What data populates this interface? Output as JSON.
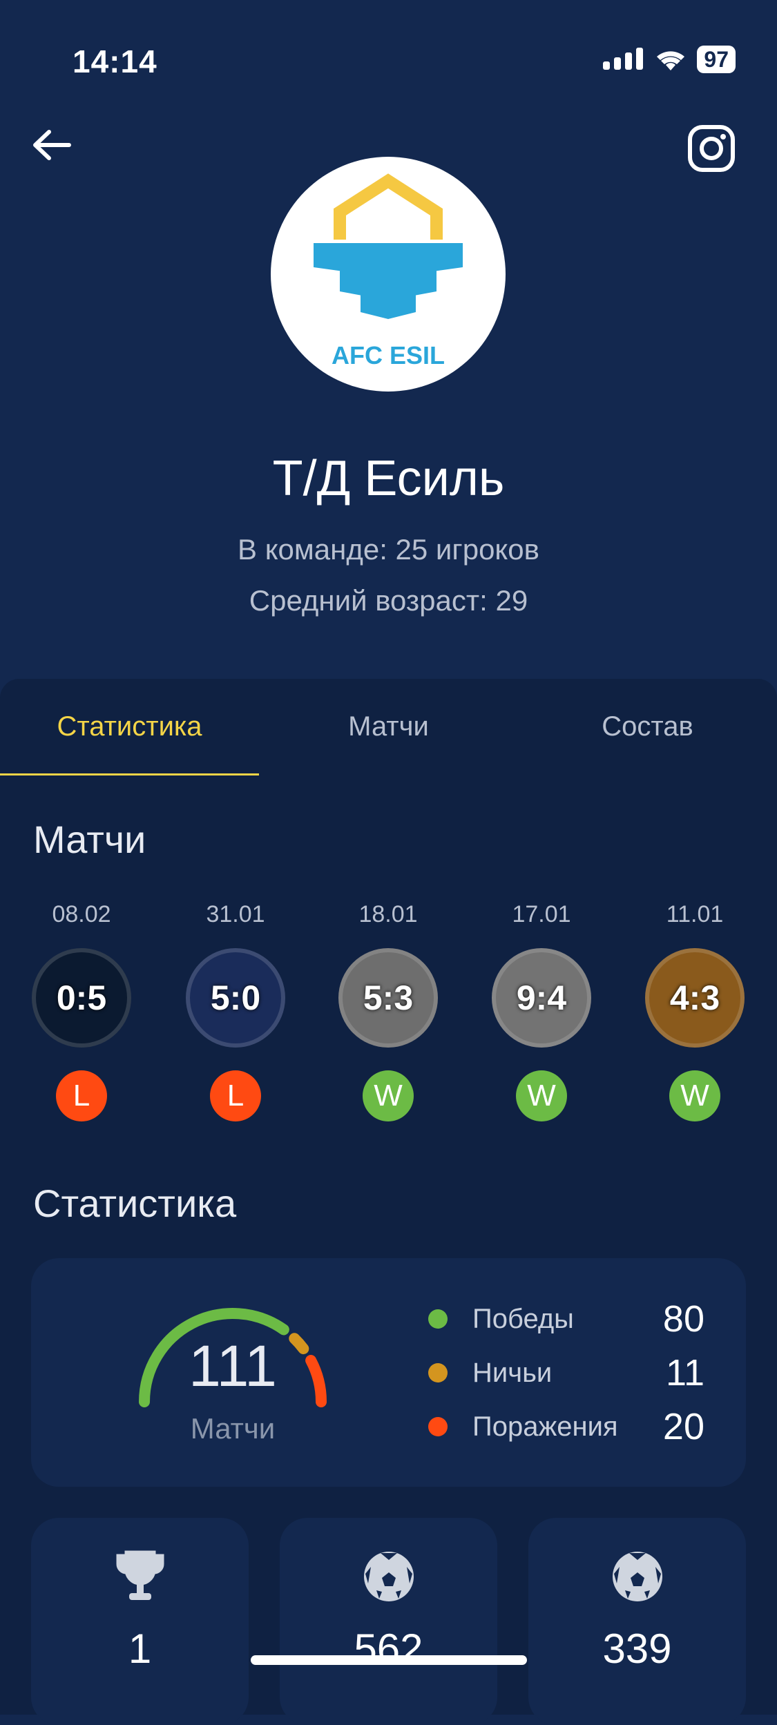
{
  "status_bar": {
    "time": "14:14",
    "battery": "97"
  },
  "header": {
    "logo_text": "AFC ESIL",
    "team_name": "Т/Д Есиль",
    "players": "В команде: 25 игроков",
    "avg_age": "Средний возраст: 29"
  },
  "tabs": [
    {
      "label": "Статистика",
      "active": true
    },
    {
      "label": "Матчи"
    },
    {
      "label": "Состав"
    }
  ],
  "matches_title": "Матчи",
  "matches": [
    {
      "date": "08.02",
      "score": "0:5",
      "result": "L",
      "logo_color": "#0b1a30"
    },
    {
      "date": "31.01",
      "score": "5:0",
      "result": "L",
      "logo_color": "#1a2c5a"
    },
    {
      "date": "18.01",
      "score": "5:3",
      "result": "W",
      "logo_color": "#6e6e6e"
    },
    {
      "date": "17.01",
      "score": "9:4",
      "result": "W",
      "logo_color": "#737373"
    },
    {
      "date": "11.01",
      "score": "4:3",
      "result": "W",
      "logo_color": "#8a5a1c"
    }
  ],
  "stats_title": "Статистика",
  "summary": {
    "total": "111",
    "total_label": "Матчи",
    "items": [
      {
        "label": "Победы",
        "value": 80,
        "color": "#6cbb45"
      },
      {
        "label": "Ничьи",
        "value": 11,
        "color": "#d4951f"
      },
      {
        "label": "Поражения",
        "value": 20,
        "color": "#ff4a12"
      }
    ]
  },
  "stat_cards": [
    {
      "icon": "trophy-icon",
      "value": "1"
    },
    {
      "icon": "soccer-ball-icon",
      "value": "562"
    },
    {
      "icon": "soccer-ball-icon",
      "value": "339"
    }
  ],
  "colors": {
    "accent": "#f5d547",
    "win": "#6cbb45",
    "loss": "#ff4a12"
  }
}
